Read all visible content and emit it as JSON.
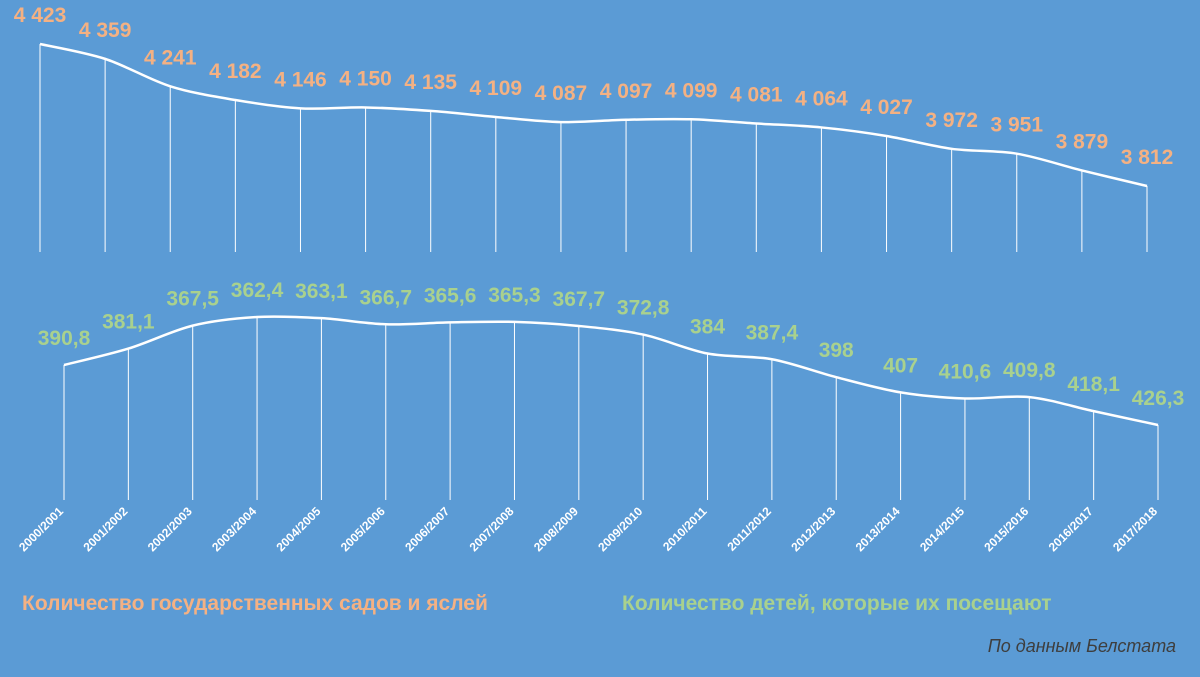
{
  "chart_data": {
    "type": "line",
    "categories": [
      "2000/2001",
      "2001/2002",
      "2002/2003",
      "2003/2004",
      "2004/2005",
      "2005/2006",
      "2006/2007",
      "2007/2008",
      "2008/2009",
      "2009/2010",
      "2010/2011",
      "2011/2012",
      "2012/2013",
      "2013/2014",
      "2014/2015",
      "2015/2016",
      "2016/2017",
      "2017/2018"
    ],
    "series": [
      {
        "name": "Количество государственных садов и яслей",
        "color": "#f4b183",
        "values": [
          4423,
          4359,
          4241,
          4182,
          4146,
          4150,
          4135,
          4109,
          4087,
          4097,
          4099,
          4081,
          4064,
          4027,
          3972,
          3951,
          3879,
          3812
        ],
        "labels": [
          "4 423",
          "4 359",
          "4 241",
          "4 182",
          "4 146",
          "4 150",
          "4 135",
          "4 109",
          "4 087",
          "4 097",
          "4 099",
          "4 081",
          "4 064",
          "4 027",
          "3 972",
          "3 951",
          "3 879",
          "3 812"
        ]
      },
      {
        "name": "Количество детей, которые их посещают",
        "color": "#a9d18e",
        "values": [
          390.8,
          381.1,
          367.5,
          362.4,
          363.1,
          366.7,
          365.6,
          365.3,
          367.7,
          372.8,
          384,
          387.4,
          398,
          407,
          410.6,
          409.8,
          418.1,
          426.3
        ],
        "labels": [
          "390,8",
          "381,1",
          "367,5",
          "362,4",
          "363,1",
          "366,7",
          "365,6",
          "365,3",
          "367,7",
          "372,8",
          "384",
          "387,4",
          "398",
          "407",
          "410,6",
          "409,8",
          "418,1",
          "426,3"
        ]
      }
    ],
    "line_color": "#ffffff",
    "background": "#5b9bd5",
    "source": "По данным Белстата"
  }
}
